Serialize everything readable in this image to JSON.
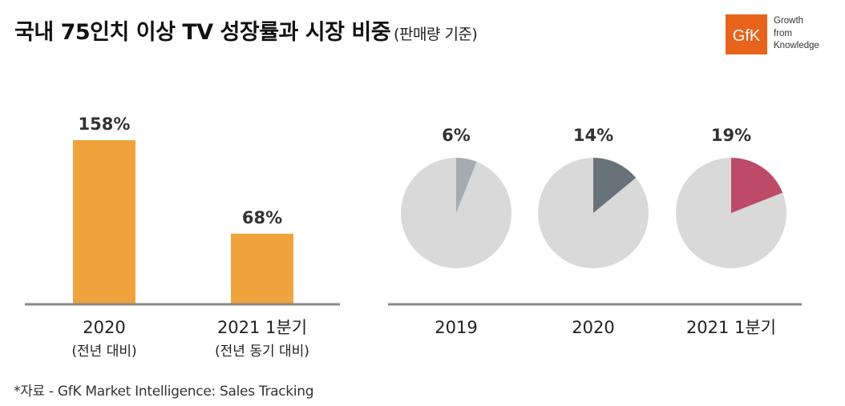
{
  "title": {
    "main": "국내 75인치 이상 TV 성장률과 시장 비중",
    "sub": "(판매량 기준)"
  },
  "logo": {
    "mark": "GfK",
    "lines": [
      "Growth",
      "from",
      "Knowledge"
    ],
    "color": "#e8631c"
  },
  "footnote": "*자료 - GfK Market Intelligence: Sales Tracking",
  "chart_data": [
    {
      "type": "bar",
      "categories": [
        "2020",
        "2021 1분기"
      ],
      "category_notes": [
        "(전년 대비)",
        "(전년 동기 대비)"
      ],
      "values": [
        158,
        68
      ],
      "value_labels": [
        "158%",
        "68%"
      ],
      "unit": "%",
      "color": "#f0a33c"
    },
    {
      "type": "pie",
      "categories": [
        "2019",
        "2020",
        "2021 1분기"
      ],
      "values": [
        6,
        14,
        19
      ],
      "value_labels": [
        "6%",
        "14%",
        "19%"
      ],
      "slice_colors": [
        "#a5acb0",
        "#687379",
        "#bd4b68"
      ],
      "rest_color": "#d9d9d9"
    }
  ]
}
